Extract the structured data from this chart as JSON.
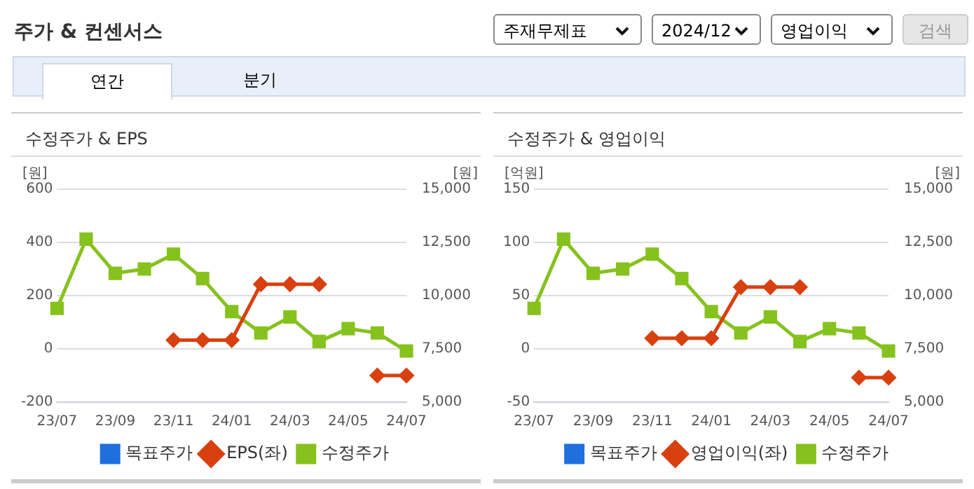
{
  "chart_data": [
    {
      "type": "other",
      "title": "주가 & 컨센서스",
      "annotations": [
        "주재무제표",
        "2024/12",
        "영업이익",
        "검색",
        "연간",
        "분기"
      ]
    },
    {
      "type": "line",
      "title": "수정주가 & EPS",
      "ylabel": "[원]",
      "y2label": "[원]",
      "categories": [
        "23/07",
        null,
        "23/09",
        null,
        "23/11",
        null,
        "24/01",
        null,
        "24/03",
        null,
        "24/05",
        null,
        "24/07"
      ],
      "series": [
        {
          "name": "목표주가",
          "color": "#1f6fde",
          "marker": "square",
          "values": [
            null,
            null,
            null,
            null,
            null,
            null,
            null,
            null,
            null,
            null,
            null,
            null,
            null
          ]
        },
        {
          "name": "EPS(좌)",
          "color": "#d9400f",
          "marker": "diamond",
          "values": [
            null,
            null,
            null,
            null,
            33,
            33,
            33,
            243,
            243,
            243,
            null,
            -100,
            -100
          ]
        },
        {
          "name": "수정주가",
          "color": "#86c21d",
          "marker": "square",
          "axis": "y2",
          "values": [
            9400,
            12650,
            11050,
            11250,
            11950,
            10800,
            9250,
            8250,
            9000,
            7850,
            8450,
            8250,
            7400
          ]
        }
      ],
      "ylim": [
        -200,
        600
      ],
      "yticks": [
        -200,
        0,
        200,
        400,
        600
      ],
      "y2lim": [
        5000,
        15000
      ],
      "y2ticks": [
        {
          "value": 5000,
          "label": "5,000"
        },
        {
          "value": 7500,
          "label": "7,500"
        },
        {
          "value": 10000,
          "label": "10,000"
        },
        {
          "value": 12500,
          "label": "12,500"
        },
        {
          "value": 15000,
          "label": "15,000"
        }
      ],
      "grid": "y",
      "legend": "bottom",
      "line_style": "solid"
    },
    {
      "type": "line",
      "title": "수정주가 & 영업이익",
      "ylabel": "[억원]",
      "y2label": "[원]",
      "categories": [
        "23/07",
        null,
        "23/09",
        null,
        "23/11",
        null,
        "24/01",
        null,
        "24/03",
        null,
        "24/05",
        null,
        "24/07"
      ],
      "series": [
        {
          "name": "목표주가",
          "color": "#1f6fde",
          "marker": "square",
          "values": [
            null,
            null,
            null,
            null,
            null,
            null,
            null,
            null,
            null,
            null,
            null,
            null,
            null
          ]
        },
        {
          "name": "영업이익(좌)",
          "color": "#d9400f",
          "marker": "diamond",
          "values": [
            null,
            null,
            null,
            null,
            10,
            10,
            10,
            58,
            58,
            58,
            null,
            -27,
            -27
          ]
        },
        {
          "name": "수정주가",
          "color": "#86c21d",
          "marker": "square",
          "axis": "y2",
          "values": [
            9400,
            12650,
            11050,
            11250,
            11950,
            10800,
            9250,
            8250,
            9000,
            7850,
            8450,
            8250,
            7400
          ]
        }
      ],
      "ylim": [
        -50,
        150
      ],
      "yticks": [
        -50,
        0,
        50,
        100,
        150
      ],
      "y2lim": [
        5000,
        15000
      ],
      "y2ticks": [
        {
          "value": 5000,
          "label": "5,000"
        },
        {
          "value": 7500,
          "label": "7,500"
        },
        {
          "value": 10000,
          "label": "10,000"
        },
        {
          "value": 12500,
          "label": "12,500"
        },
        {
          "value": 15000,
          "label": "15,000"
        }
      ],
      "grid": "y",
      "legend": "bottom",
      "line_style": "solid"
    }
  ]
}
